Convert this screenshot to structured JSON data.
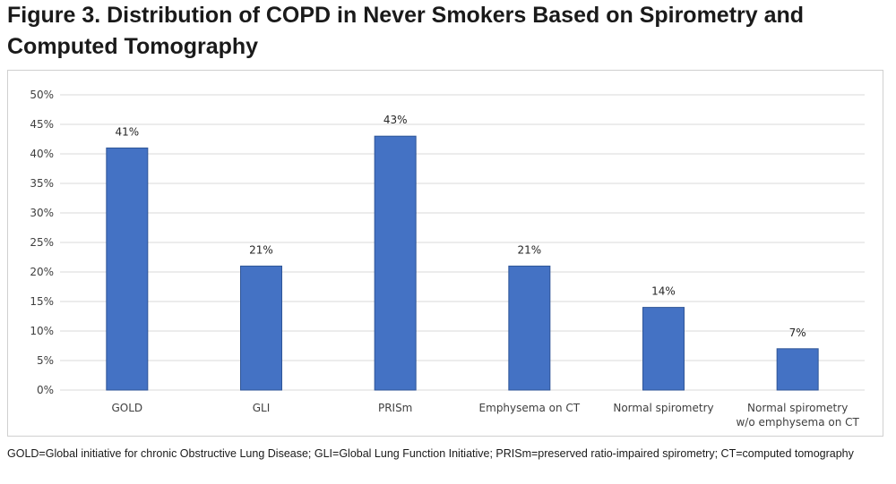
{
  "title": "Figure 3. Distribution of COPD in Never Smokers Based on Spirometry and Computed Tomography",
  "footnote": "GOLD=Global initiative for chronic Obstructive Lung Disease; GLI=Global Lung Function Initiative; PRISm=preserved ratio-impaired spirometry; CT=computed tomography",
  "chart_data": {
    "type": "bar",
    "title": "",
    "xlabel": "",
    "ylabel": "",
    "categories": [
      [
        "GOLD"
      ],
      [
        "GLI"
      ],
      [
        "PRISm"
      ],
      [
        "Emphysema on CT"
      ],
      [
        "Normal spirometry"
      ],
      [
        "Normal spirometry",
        "w/o emphysema on CT"
      ]
    ],
    "values": [
      41,
      21,
      43,
      21,
      14,
      7
    ],
    "value_labels": [
      "41%",
      "21%",
      "43%",
      "21%",
      "14%",
      "7%"
    ],
    "ylim": [
      0,
      50
    ],
    "yticks": [
      0,
      5,
      10,
      15,
      20,
      25,
      30,
      35,
      40,
      45,
      50
    ],
    "ytick_labels": [
      "0%",
      "5%",
      "10%",
      "15%",
      "20%",
      "25%",
      "30%",
      "35%",
      "40%",
      "45%",
      "50%"
    ],
    "grid": true,
    "legend": "none",
    "bar_color": "#4472c4",
    "bar_edge_color": "#2f5597",
    "grid_color": "#d9d9d9"
  }
}
